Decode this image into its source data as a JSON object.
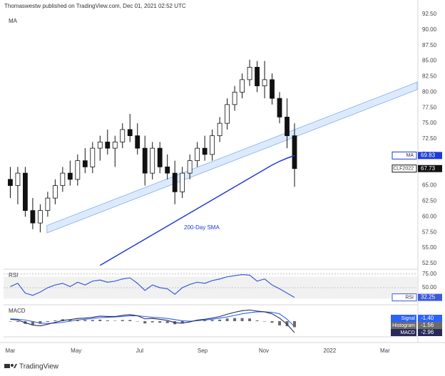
{
  "header": {
    "text": "Thomaswestw published on TradingView.com, Dec 01, 2021 02:52 UTC"
  },
  "footer": {
    "brand": "TradingView"
  },
  "chart_data": [
    {
      "type": "candlestick",
      "title": "MA",
      "categories": [
        null,
        null,
        null,
        null,
        null,
        null,
        null,
        null,
        null,
        null,
        null,
        null,
        null,
        null,
        null,
        null,
        null,
        null,
        null,
        null,
        null,
        null,
        null,
        null,
        null,
        null,
        null,
        null,
        null,
        null,
        null,
        null,
        null,
        null,
        null,
        null,
        null,
        null,
        null
      ],
      "ohlc": {
        "name": "CLF2022",
        "open": [
          66,
          65,
          67,
          61,
          59,
          61,
          63,
          65,
          67,
          66,
          69,
          68,
          71,
          72,
          71,
          72,
          74,
          73,
          71,
          67,
          71,
          68,
          67,
          64,
          67,
          69,
          71,
          70,
          73,
          75,
          78,
          80,
          82,
          84,
          81,
          82,
          79,
          76,
          73
        ],
        "high": [
          68,
          68,
          68,
          63,
          62,
          64,
          66,
          68,
          69,
          70,
          71,
          72,
          73,
          74,
          73,
          75,
          76.5,
          75,
          73,
          72,
          72,
          70,
          69,
          68,
          70,
          72,
          73,
          74,
          76,
          79,
          81,
          83,
          85.2,
          85,
          85,
          83,
          80,
          79,
          75
        ],
        "low": [
          63,
          62,
          60,
          58,
          57.5,
          60,
          62,
          64,
          65,
          65,
          67,
          67,
          69,
          70,
          68,
          71,
          72,
          70,
          65,
          66,
          67,
          66,
          62,
          63,
          66,
          68,
          69,
          69,
          72,
          74,
          77,
          79,
          81,
          80,
          79,
          78,
          75,
          71,
          64.8
        ],
        "close": [
          65,
          67,
          61,
          59,
          61,
          63,
          65,
          67,
          66,
          69,
          68,
          71,
          72,
          71,
          72,
          74,
          73,
          71,
          67,
          71,
          68,
          67,
          64,
          67,
          69,
          71,
          70,
          73,
          75,
          78,
          80,
          82,
          84,
          81,
          82,
          79,
          76,
          73,
          67.73
        ]
      },
      "ma": {
        "name": "MA",
        "color": "#1e3ad6",
        "values": [
          null,
          null,
          null,
          null,
          null,
          null,
          null,
          null,
          null,
          null,
          null,
          null,
          52.2,
          52.9,
          53.6,
          54.3,
          55,
          55.7,
          56.4,
          57.1,
          57.8,
          58.5,
          59.2,
          59.9,
          60.6,
          61.3,
          62,
          62.7,
          63.4,
          64.1,
          64.8,
          65.5,
          66.2,
          66.9,
          67.6,
          68.3,
          68.9,
          69.4,
          69.83
        ]
      },
      "annotation": "200-Day SMA",
      "trendline": {
        "x": [
          4.9,
          54.4
        ],
        "lower": [
          57.4,
          80.4
        ],
        "upper": [
          58.6,
          81.6
        ],
        "color": "#bcd6f7"
      },
      "ylim": [
        51.7,
        93.3
      ],
      "yticks": [
        {
          "value": 92.5,
          "label": "92.50"
        },
        {
          "value": 90,
          "label": "90.00"
        },
        {
          "value": 87.5,
          "label": "87.50"
        },
        {
          "value": 85,
          "label": "85.00"
        },
        {
          "value": 82.5,
          "label": "82.50"
        },
        {
          "value": 80,
          "label": "80.00"
        },
        {
          "value": 77.5,
          "label": "77.50"
        },
        {
          "value": 75,
          "label": "75.00"
        },
        {
          "value": 72.5,
          "label": "72.50"
        },
        {
          "value": 70,
          "label": "70.00"
        },
        {
          "value": 67.5,
          "label": "67.50"
        },
        {
          "value": 65,
          "label": "65.00"
        },
        {
          "value": 62.5,
          "label": "62.50"
        },
        {
          "value": 60,
          "label": "60.00"
        },
        {
          "value": 57.5,
          "label": "57.50"
        },
        {
          "value": 55,
          "label": "55.00"
        },
        {
          "value": 52.5,
          "label": "52.50"
        }
      ],
      "xlim": [
        -0.9,
        54.4
      ],
      "xticks": [
        {
          "value": 0,
          "label": "Mar"
        },
        {
          "value": 8.8,
          "label": "May"
        },
        {
          "value": 17.3,
          "label": "Jul"
        },
        {
          "value": 25.7,
          "label": "Sep"
        },
        {
          "value": 33.9,
          "label": "Nov"
        },
        {
          "value": 42.7,
          "label": "2022"
        },
        {
          "value": 50.1,
          "label": "Mar"
        }
      ]
    },
    {
      "type": "line",
      "title": "RSI",
      "series": [
        {
          "name": "RSI",
          "color": "#3d5bd9",
          "values": [
            52,
            58,
            40,
            36,
            42,
            50,
            55,
            58,
            52,
            60,
            55,
            62,
            64,
            60,
            62,
            66,
            68,
            58,
            45,
            55,
            50,
            48,
            38,
            50,
            56,
            60,
            58,
            63,
            66,
            70,
            72,
            74,
            73,
            62,
            66,
            55,
            48,
            40,
            32.25
          ]
        }
      ],
      "band": [
        30,
        70
      ],
      "ylim": [
        20,
        80
      ],
      "yticks": [
        {
          "value": 75,
          "label": "75.00"
        },
        {
          "value": 50,
          "label": "50.00"
        }
      ]
    },
    {
      "type": "macd",
      "title": "MACD",
      "series": [
        {
          "name": "Signal",
          "color": "#2962ff",
          "values": [
            0.6,
            0.5,
            0.3,
            -0.1,
            -0.5,
            -0.6,
            -0.5,
            -0.3,
            0,
            0.3,
            0.5,
            0.7,
            0.9,
            1.0,
            1.1,
            1.2,
            1.4,
            1.4,
            1.2,
            1.0,
            0.9,
            0.7,
            0.4,
            0.1,
            0,
            0.1,
            0.3,
            0.5,
            0.8,
            1.1,
            1.5,
            1.9,
            2.2,
            2.4,
            2.4,
            2.3,
            1.9,
            0.5,
            -1.4
          ],
          "value_labels": [
            null,
            null,
            null,
            null,
            null,
            null,
            null,
            null,
            null,
            null,
            null,
            null,
            null,
            null,
            null,
            null,
            null,
            null,
            null,
            null,
            null,
            null,
            null,
            null,
            null,
            null,
            null,
            null,
            null,
            null,
            null,
            null,
            null,
            null,
            null,
            null,
            null,
            null,
            "-1.40"
          ]
        },
        {
          "name": "Histogram",
          "color": "#6b6b6b",
          "values": [
            -0.1,
            -0.2,
            -0.7,
            -0.9,
            -0.7,
            -0.2,
            0.2,
            0.5,
            0.4,
            0.4,
            0.3,
            0.3,
            0.4,
            0.2,
            0.1,
            0.3,
            0.3,
            0,
            -0.6,
            -0.3,
            -0.4,
            -0.5,
            -0.8,
            -0.6,
            -0.2,
            0.2,
            0.2,
            0.3,
            0.4,
            0.7,
            0.8,
            0.8,
            0.7,
            0.2,
            0,
            -0.4,
            -1.1,
            -1.3,
            -1.56
          ]
        },
        {
          "name": "MACD",
          "color": "#2a2a5a",
          "values": [
            0.5,
            0.3,
            -0.4,
            -1,
            -1.2,
            -0.8,
            -0.3,
            0.2,
            0.4,
            0.7,
            0.8,
            1.0,
            1.3,
            1.2,
            1.2,
            1.5,
            1.7,
            1.4,
            0.6,
            0.7,
            0.5,
            0.2,
            -0.4,
            -0.5,
            -0.2,
            0.3,
            0.5,
            0.8,
            1.2,
            1.8,
            2.3,
            2.7,
            2.9,
            2.6,
            2.4,
            1.9,
            0.8,
            -0.8,
            -2.96
          ]
        }
      ],
      "ylim": [
        -3.5,
        3.5
      ]
    }
  ]
}
